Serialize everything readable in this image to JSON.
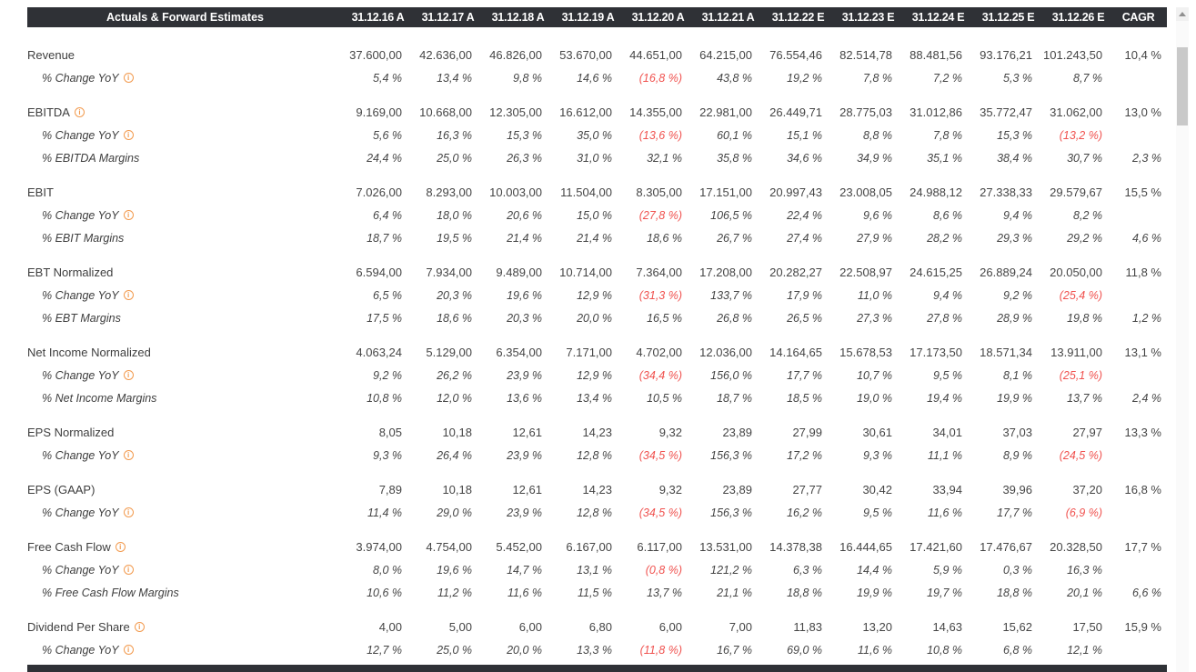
{
  "colors": {
    "header_bg": "#2f3136",
    "negative_red": "#f0524f",
    "info_orange": "#f29a4e"
  },
  "icons": {
    "info_glyph": "i"
  },
  "header": {
    "title": "Actuals & Forward Estimates",
    "columns": [
      "31.12.16 A",
      "31.12.17 A",
      "31.12.18 A",
      "31.12.19 A",
      "31.12.20 A",
      "31.12.21 A",
      "31.12.22 E",
      "31.12.23 E",
      "31.12.24 E",
      "31.12.25 E",
      "31.12.26 E",
      "CAGR"
    ]
  },
  "table": {
    "blocks": [
      {
        "label": "Revenue",
        "info": false,
        "values": [
          "37.600,00",
          "42.636,00",
          "46.826,00",
          "53.670,00",
          "44.651,00",
          "64.215,00",
          "76.554,46",
          "82.514,78",
          "88.481,56",
          "93.176,21",
          "101.243,50",
          "10,4 %"
        ],
        "subrows": [
          {
            "label": "% Change YoY",
            "info": true,
            "values": [
              "5,4 %",
              "13,4 %",
              "9,8 %",
              "14,6 %",
              "(16,8 %)",
              "43,8 %",
              "19,2 %",
              "7,8 %",
              "7,2 %",
              "5,3 %",
              "8,7 %",
              ""
            ]
          }
        ]
      },
      {
        "label": "EBITDA",
        "info": true,
        "values": [
          "9.169,00",
          "10.668,00",
          "12.305,00",
          "16.612,00",
          "14.355,00",
          "22.981,00",
          "26.449,71",
          "28.775,03",
          "31.012,86",
          "35.772,47",
          "31.062,00",
          "13,0 %"
        ],
        "subrows": [
          {
            "label": "% Change YoY",
            "info": true,
            "values": [
              "5,6 %",
              "16,3 %",
              "15,3 %",
              "35,0 %",
              "(13,6 %)",
              "60,1 %",
              "15,1 %",
              "8,8 %",
              "7,8 %",
              "15,3 %",
              "(13,2 %)",
              ""
            ]
          },
          {
            "label": "% EBITDA Margins",
            "info": false,
            "values": [
              "24,4 %",
              "25,0 %",
              "26,3 %",
              "31,0 %",
              "32,1 %",
              "35,8 %",
              "34,6 %",
              "34,9 %",
              "35,1 %",
              "38,4 %",
              "30,7 %",
              "2,3 %"
            ]
          }
        ]
      },
      {
        "label": "EBIT",
        "info": false,
        "values": [
          "7.026,00",
          "8.293,00",
          "10.003,00",
          "11.504,00",
          "8.305,00",
          "17.151,00",
          "20.997,43",
          "23.008,05",
          "24.988,12",
          "27.338,33",
          "29.579,67",
          "15,5 %"
        ],
        "subrows": [
          {
            "label": "% Change YoY",
            "info": true,
            "values": [
              "6,4 %",
              "18,0 %",
              "20,6 %",
              "15,0 %",
              "(27,8 %)",
              "106,5 %",
              "22,4 %",
              "9,6 %",
              "8,6 %",
              "9,4 %",
              "8,2 %",
              ""
            ]
          },
          {
            "label": "% EBIT Margins",
            "info": false,
            "values": [
              "18,7 %",
              "19,5 %",
              "21,4 %",
              "21,4 %",
              "18,6 %",
              "26,7 %",
              "27,4 %",
              "27,9 %",
              "28,2 %",
              "29,3 %",
              "29,2 %",
              "4,6 %"
            ]
          }
        ]
      },
      {
        "label": "EBT Normalized",
        "info": false,
        "values": [
          "6.594,00",
          "7.934,00",
          "9.489,00",
          "10.714,00",
          "7.364,00",
          "17.208,00",
          "20.282,27",
          "22.508,97",
          "24.615,25",
          "26.889,24",
          "20.050,00",
          "11,8 %"
        ],
        "subrows": [
          {
            "label": "% Change YoY",
            "info": true,
            "values": [
              "6,5 %",
              "20,3 %",
              "19,6 %",
              "12,9 %",
              "(31,3 %)",
              "133,7 %",
              "17,9 %",
              "11,0 %",
              "9,4 %",
              "9,2 %",
              "(25,4 %)",
              ""
            ]
          },
          {
            "label": "% EBT Margins",
            "info": false,
            "values": [
              "17,5 %",
              "18,6 %",
              "20,3 %",
              "20,0 %",
              "16,5 %",
              "26,8 %",
              "26,5 %",
              "27,3 %",
              "27,8 %",
              "28,9 %",
              "19,8 %",
              "1,2 %"
            ]
          }
        ]
      },
      {
        "label": "Net Income Normalized",
        "info": false,
        "values": [
          "4.063,24",
          "5.129,00",
          "6.354,00",
          "7.171,00",
          "4.702,00",
          "12.036,00",
          "14.164,65",
          "15.678,53",
          "17.173,50",
          "18.571,34",
          "13.911,00",
          "13,1 %"
        ],
        "subrows": [
          {
            "label": "% Change YoY",
            "info": true,
            "values": [
              "9,2 %",
              "26,2 %",
              "23,9 %",
              "12,9 %",
              "(34,4 %)",
              "156,0 %",
              "17,7 %",
              "10,7 %",
              "9,5 %",
              "8,1 %",
              "(25,1 %)",
              ""
            ]
          },
          {
            "label": "% Net Income Margins",
            "info": false,
            "values": [
              "10,8 %",
              "12,0 %",
              "13,6 %",
              "13,4 %",
              "10,5 %",
              "18,7 %",
              "18,5 %",
              "19,0 %",
              "19,4 %",
              "19,9 %",
              "13,7 %",
              "2,4 %"
            ]
          }
        ]
      },
      {
        "label": "EPS Normalized",
        "info": false,
        "values": [
          "8,05",
          "10,18",
          "12,61",
          "14,23",
          "9,32",
          "23,89",
          "27,99",
          "30,61",
          "34,01",
          "37,03",
          "27,97",
          "13,3 %"
        ],
        "subrows": [
          {
            "label": "% Change YoY",
            "info": true,
            "values": [
              "9,3 %",
              "26,4 %",
              "23,9 %",
              "12,8 %",
              "(34,5 %)",
              "156,3 %",
              "17,2 %",
              "9,3 %",
              "11,1 %",
              "8,9 %",
              "(24,5 %)",
              ""
            ]
          }
        ]
      },
      {
        "label": "EPS (GAAP)",
        "info": false,
        "values": [
          "7,89",
          "10,18",
          "12,61",
          "14,23",
          "9,32",
          "23,89",
          "27,77",
          "30,42",
          "33,94",
          "39,96",
          "37,20",
          "16,8 %"
        ],
        "subrows": [
          {
            "label": "% Change YoY",
            "info": true,
            "values": [
              "11,4 %",
              "29,0 %",
              "23,9 %",
              "12,8 %",
              "(34,5 %)",
              "156,3 %",
              "16,2 %",
              "9,5 %",
              "11,6 %",
              "17,7 %",
              "(6,9 %)",
              ""
            ]
          }
        ]
      },
      {
        "label": "Free Cash Flow",
        "info": true,
        "values": [
          "3.974,00",
          "4.754,00",
          "5.452,00",
          "6.167,00",
          "6.117,00",
          "13.531,00",
          "14.378,38",
          "16.444,65",
          "17.421,60",
          "17.476,67",
          "20.328,50",
          "17,7 %"
        ],
        "subrows": [
          {
            "label": "% Change YoY",
            "info": true,
            "values": [
              "8,0 %",
              "19,6 %",
              "14,7 %",
              "13,1 %",
              "(0,8 %)",
              "121,2 %",
              "6,3 %",
              "14,4 %",
              "5,9 %",
              "0,3 %",
              "16,3 %",
              ""
            ]
          },
          {
            "label": "% Free Cash Flow Margins",
            "info": false,
            "values": [
              "10,6 %",
              "11,2 %",
              "11,6 %",
              "11,5 %",
              "13,7 %",
              "21,1 %",
              "18,8 %",
              "19,9 %",
              "19,7 %",
              "18,8 %",
              "20,1 %",
              "6,6 %"
            ]
          }
        ]
      },
      {
        "label": "Dividend Per Share",
        "info": true,
        "values": [
          "4,00",
          "5,00",
          "6,00",
          "6,80",
          "6,00",
          "7,00",
          "11,83",
          "13,20",
          "14,63",
          "15,62",
          "17,50",
          "15,9 %"
        ],
        "subrows": [
          {
            "label": "% Change YoY",
            "info": true,
            "values": [
              "12,7 %",
              "25,0 %",
              "20,0 %",
              "13,3 %",
              "(11,8 %)",
              "16,7 %",
              "69,0 %",
              "11,6 %",
              "10,8 %",
              "6,8 %",
              "12,1 %",
              ""
            ]
          }
        ]
      }
    ]
  }
}
